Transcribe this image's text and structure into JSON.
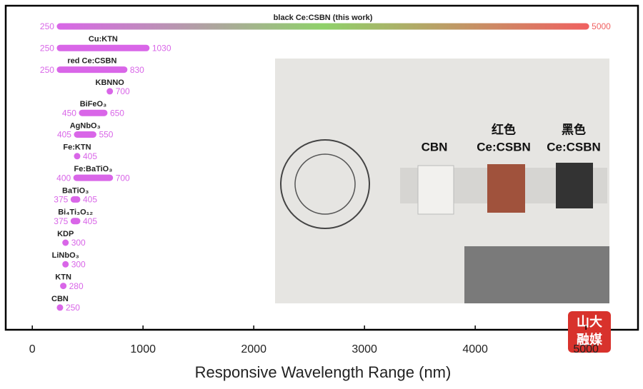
{
  "chart_data": {
    "type": "range",
    "x_label": "Responsive Wavelength Range (nm)",
    "xlim": [
      -240,
      5470
    ],
    "xticks": [
      0,
      1000,
      2000,
      3000,
      4000,
      5000
    ],
    "color": "#d966e8",
    "gradient": [
      "#d966e8",
      "#8fd16a",
      "#f06060"
    ],
    "items": [
      {
        "name": "black Ce:CSBN (this work)",
        "low": 250,
        "high": 5000,
        "gradient": true
      },
      {
        "name": "Cu:KTN",
        "low": 250,
        "high": 1030
      },
      {
        "name": "red Ce:CSBN",
        "low": 250,
        "high": 830
      },
      {
        "name": "KBNNO",
        "value": 700
      },
      {
        "name": "BiFeO₃",
        "low": 450,
        "high": 650
      },
      {
        "name": "AgNbO₃",
        "low": 405,
        "high": 550
      },
      {
        "name": "Fe:KTN",
        "value": 405
      },
      {
        "name": "Fe:BaTiO₃",
        "low": 400,
        "high": 700
      },
      {
        "name": "BaTiO₃",
        "low": 375,
        "high": 405
      },
      {
        "name": "Bi₄Ti₃O₁₂",
        "low": 375,
        "high": 405
      },
      {
        "name": "KDP",
        "value": 300
      },
      {
        "name": "LiNbO₃",
        "value": 300
      },
      {
        "name": "KTN",
        "value": 280
      },
      {
        "name": "CBN",
        "value": 250
      }
    ],
    "photo_labels": [
      "CBN",
      "红色",
      "Ce:CSBN",
      "黑色",
      "Ce:CSBN"
    ],
    "logo": [
      "山大",
      "融媒"
    ]
  }
}
